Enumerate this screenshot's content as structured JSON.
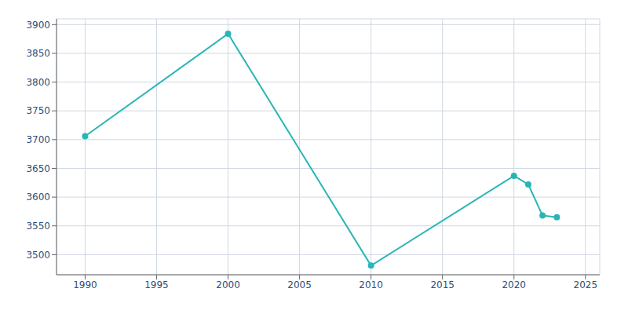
{
  "chart_data": {
    "type": "line",
    "x": [
      1990,
      2000,
      2010,
      2020,
      2021,
      2022,
      2023
    ],
    "values": [
      3706,
      3884,
      3481,
      3637,
      3622,
      3568,
      3565
    ],
    "color": "#2ab5b5",
    "marker": "circle",
    "xlim": [
      1988,
      2026
    ],
    "ylim": [
      3465,
      3910
    ],
    "xticks": [
      1990,
      1995,
      2000,
      2005,
      2010,
      2015,
      2020,
      2025
    ],
    "yticks": [
      3500,
      3550,
      3600,
      3650,
      3700,
      3750,
      3800,
      3850,
      3900
    ],
    "grid": true
  }
}
